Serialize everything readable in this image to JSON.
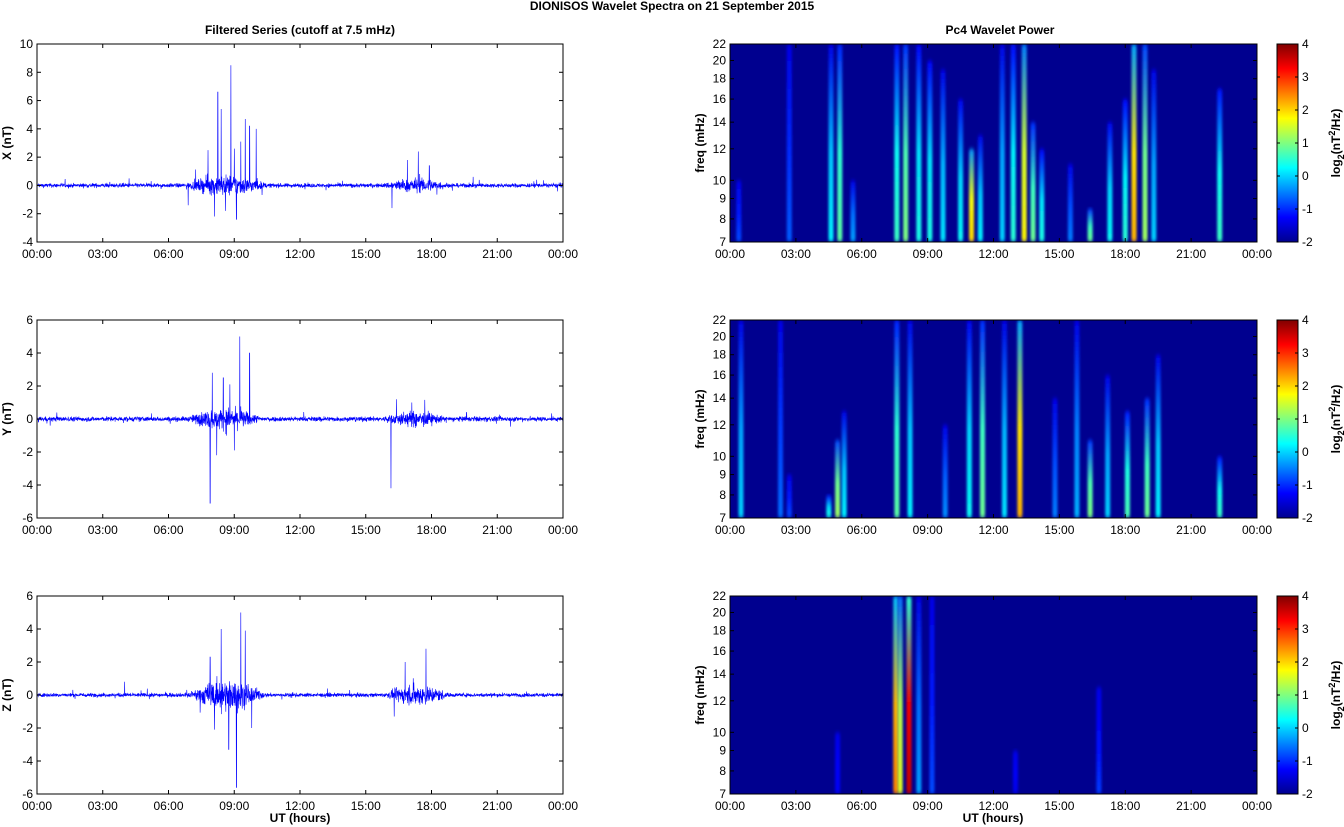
{
  "figure": {
    "title": "DIONISOS Wavelet Spectra on 21 September 2015",
    "left_title": "Filtered Series (cutoff at 7.5 mHz)",
    "right_title": "Pc4 Wavelet Power",
    "x_label": "UT (hours)",
    "time_ticks": [
      "00:00",
      "03:00",
      "06:00",
      "09:00",
      "12:00",
      "15:00",
      "18:00",
      "21:00",
      "00:00"
    ],
    "freq_label": "freq (mHz)",
    "freq_ticks": [
      7,
      8,
      9,
      10,
      12,
      14,
      16,
      18,
      20,
      22
    ],
    "colorbar_ticks": [
      -2,
      -1,
      0,
      1,
      2,
      3,
      4
    ],
    "colorbar_label": "log2(nT^2/Hz)",
    "colormap": "jet",
    "trace_color": "#0000ff",
    "spectrum_background": "#00008f"
  },
  "chart_data": [
    {
      "type": "line",
      "panel": "filtered-x",
      "series_name": "X",
      "ylabel": "X (nT)",
      "ylim": [
        -4,
        10
      ],
      "yticks": [
        -4,
        -2,
        0,
        2,
        4,
        6,
        8,
        10
      ],
      "xlim_hours": [
        0,
        24
      ],
      "baseline_noise_nT": 0.1,
      "bursts": [
        {
          "start_h": 6.8,
          "end_h": 10.5,
          "noise_nT": 0.4
        },
        {
          "start_h": 15.8,
          "end_h": 18.8,
          "noise_nT": 0.25
        }
      ],
      "spikes": [
        {
          "t_h": 8.25,
          "y": 6.6
        },
        {
          "t_h": 8.4,
          "y": 5.4
        },
        {
          "t_h": 8.85,
          "y": 8.5
        },
        {
          "t_h": 9.5,
          "y": 4.7
        },
        {
          "t_h": 9.7,
          "y": 4.2
        },
        {
          "t_h": 10.0,
          "y": 4.0
        },
        {
          "t_h": 7.8,
          "y": 2.5
        },
        {
          "t_h": 9.0,
          "y": 2.6
        },
        {
          "t_h": 9.3,
          "y": 3.1
        },
        {
          "t_h": 8.1,
          "y": -2.2
        },
        {
          "t_h": 8.6,
          "y": -1.8
        },
        {
          "t_h": 9.1,
          "y": -2.4
        },
        {
          "t_h": 6.9,
          "y": -1.4
        },
        {
          "t_h": 17.4,
          "y": 2.4
        },
        {
          "t_h": 17.9,
          "y": 1.4
        },
        {
          "t_h": 16.2,
          "y": -1.6
        },
        {
          "t_h": 16.9,
          "y": 1.8
        },
        {
          "t_h": 4.2,
          "y": 0.5
        },
        {
          "t_h": 22.8,
          "y": 0.4
        }
      ]
    },
    {
      "type": "line",
      "panel": "filtered-y",
      "series_name": "Y",
      "ylabel": "Y (nT)",
      "ylim": [
        -6,
        6
      ],
      "yticks": [
        -6,
        -4,
        -2,
        0,
        2,
        4,
        6
      ],
      "xlim_hours": [
        0,
        24
      ],
      "baseline_noise_nT": 0.1,
      "bursts": [
        {
          "start_h": 6.9,
          "end_h": 10.2,
          "noise_nT": 0.35
        },
        {
          "start_h": 15.8,
          "end_h": 18.6,
          "noise_nT": 0.22
        }
      ],
      "spikes": [
        {
          "t_h": 9.25,
          "y": 5.0
        },
        {
          "t_h": 9.7,
          "y": 4.0
        },
        {
          "t_h": 7.9,
          "y": -5.1
        },
        {
          "t_h": 8.0,
          "y": 2.8
        },
        {
          "t_h": 8.5,
          "y": 2.5
        },
        {
          "t_h": 8.8,
          "y": 2.1
        },
        {
          "t_h": 8.2,
          "y": -2.2
        },
        {
          "t_h": 9.0,
          "y": -1.9
        },
        {
          "t_h": 16.15,
          "y": -4.2
        },
        {
          "t_h": 16.4,
          "y": 1.2
        },
        {
          "t_h": 17.1,
          "y": 1.0
        },
        {
          "t_h": 0.6,
          "y": -0.4
        },
        {
          "t_h": 19.6,
          "y": 0.4
        }
      ]
    },
    {
      "type": "line",
      "panel": "filtered-z",
      "series_name": "Z",
      "ylabel": "Z (nT)",
      "ylim": [
        -6,
        6
      ],
      "yticks": [
        -6,
        -4,
        -2,
        0,
        2,
        4,
        6
      ],
      "xlim_hours": [
        0,
        24
      ],
      "baseline_noise_nT": 0.08,
      "bursts": [
        {
          "start_h": 6.9,
          "end_h": 10.4,
          "noise_nT": 0.55
        },
        {
          "start_h": 15.9,
          "end_h": 18.8,
          "noise_nT": 0.35
        }
      ],
      "spikes": [
        {
          "t_h": 8.4,
          "y": 4.0
        },
        {
          "t_h": 9.3,
          "y": 5.0
        },
        {
          "t_h": 9.1,
          "y": -5.6
        },
        {
          "t_h": 8.75,
          "y": -3.3
        },
        {
          "t_h": 9.5,
          "y": 3.9
        },
        {
          "t_h": 7.9,
          "y": 2.3
        },
        {
          "t_h": 8.1,
          "y": -2.1
        },
        {
          "t_h": 17.75,
          "y": 2.8
        },
        {
          "t_h": 16.8,
          "y": 2.0
        },
        {
          "t_h": 16.3,
          "y": -1.3
        },
        {
          "t_h": 4.0,
          "y": 0.8
        },
        {
          "t_h": 9.8,
          "y": -2.0
        }
      ]
    },
    {
      "type": "heatmap",
      "panel": "wavelet-x",
      "colorbar_range": [
        -2,
        4
      ],
      "ylim_mHz": [
        7,
        22
      ],
      "xlim_hours": [
        0,
        24
      ],
      "streaks": [
        {
          "t_h": 2.7,
          "f_top": 22,
          "peak": -0.7
        },
        {
          "t_h": 4.6,
          "f_top": 22,
          "peak": 0.2
        },
        {
          "t_h": 5.0,
          "f_top": 22,
          "peak": 0.8
        },
        {
          "t_h": 5.6,
          "f_top": 10,
          "peak": -0.3
        },
        {
          "t_h": 7.6,
          "f_top": 22,
          "peak": 0.6
        },
        {
          "t_h": 8.0,
          "f_top": 22,
          "peak": 1.0
        },
        {
          "t_h": 8.6,
          "f_top": 22,
          "peak": 0.4
        },
        {
          "t_h": 9.1,
          "f_top": 20,
          "peak": 0.4
        },
        {
          "t_h": 9.7,
          "f_top": 19,
          "peak": 0.1
        },
        {
          "t_h": 10.5,
          "f_top": 16,
          "peak": 0.3
        },
        {
          "t_h": 11.0,
          "f_top": 12,
          "peak": 2.0
        },
        {
          "t_h": 11.4,
          "f_top": 13,
          "peak": 0.2
        },
        {
          "t_h": 12.4,
          "f_top": 22,
          "peak": 0.0
        },
        {
          "t_h": 12.9,
          "f_top": 22,
          "peak": 0.5
        },
        {
          "t_h": 13.4,
          "f_top": 22,
          "peak": 1.8
        },
        {
          "t_h": 13.8,
          "f_top": 14,
          "peak": 0.9
        },
        {
          "t_h": 14.2,
          "f_top": 12,
          "peak": 0.4
        },
        {
          "t_h": 15.5,
          "f_top": 11,
          "peak": -0.5
        },
        {
          "t_h": 16.4,
          "f_top": 8.5,
          "peak": 0.9
        },
        {
          "t_h": 17.3,
          "f_top": 14,
          "peak": 0.3
        },
        {
          "t_h": 18.0,
          "f_top": 16,
          "peak": 0.5
        },
        {
          "t_h": 18.4,
          "f_top": 22,
          "peak": 2.2
        },
        {
          "t_h": 18.9,
          "f_top": 22,
          "peak": 1.2
        },
        {
          "t_h": 19.3,
          "f_top": 19,
          "peak": 0.0
        },
        {
          "t_h": 22.3,
          "f_top": 17,
          "peak": 0.6
        },
        {
          "t_h": 0.4,
          "f_top": 10,
          "peak": -0.8
        }
      ]
    },
    {
      "type": "heatmap",
      "panel": "wavelet-y",
      "colorbar_range": [
        -2,
        4
      ],
      "ylim_mHz": [
        7,
        22
      ],
      "xlim_hours": [
        0,
        24
      ],
      "streaks": [
        {
          "t_h": 0.5,
          "f_top": 22,
          "peak": 0.0
        },
        {
          "t_h": 2.3,
          "f_top": 22,
          "peak": -0.6
        },
        {
          "t_h": 2.7,
          "f_top": 9,
          "peak": -0.8
        },
        {
          "t_h": 4.5,
          "f_top": 8,
          "peak": 0.4
        },
        {
          "t_h": 4.9,
          "f_top": 11,
          "peak": 1.2
        },
        {
          "t_h": 5.2,
          "f_top": 13,
          "peak": 0.2
        },
        {
          "t_h": 7.6,
          "f_top": 22,
          "peak": 0.8
        },
        {
          "t_h": 8.2,
          "f_top": 22,
          "peak": 0.2
        },
        {
          "t_h": 9.8,
          "f_top": 12,
          "peak": -0.4
        },
        {
          "t_h": 10.9,
          "f_top": 22,
          "peak": 0.3
        },
        {
          "t_h": 11.5,
          "f_top": 22,
          "peak": 0.9
        },
        {
          "t_h": 12.5,
          "f_top": 22,
          "peak": 0.1
        },
        {
          "t_h": 13.2,
          "f_top": 22,
          "peak": 2.2
        },
        {
          "t_h": 14.8,
          "f_top": 14,
          "peak": -0.5
        },
        {
          "t_h": 15.8,
          "f_top": 22,
          "peak": -0.2
        },
        {
          "t_h": 16.4,
          "f_top": 11,
          "peak": 1.0
        },
        {
          "t_h": 17.2,
          "f_top": 16,
          "peak": 0.0
        },
        {
          "t_h": 18.1,
          "f_top": 13,
          "peak": 0.7
        },
        {
          "t_h": 19.0,
          "f_top": 14,
          "peak": 0.9
        },
        {
          "t_h": 19.5,
          "f_top": 18,
          "peak": 0.2
        },
        {
          "t_h": 22.3,
          "f_top": 10,
          "peak": 0.6
        }
      ]
    },
    {
      "type": "heatmap",
      "panel": "wavelet-z",
      "colorbar_range": [
        -2,
        4
      ],
      "ylim_mHz": [
        7,
        22
      ],
      "xlim_hours": [
        0,
        24
      ],
      "streaks": [
        {
          "t_h": 7.55,
          "f_top": 22,
          "peak": 2.5
        },
        {
          "t_h": 7.75,
          "f_top": 22,
          "peak": 1.6
        },
        {
          "t_h": 8.15,
          "f_top": 22,
          "peak": 3.6
        },
        {
          "t_h": 8.6,
          "f_top": 22,
          "peak": -0.3
        },
        {
          "t_h": 9.2,
          "f_top": 22,
          "peak": -0.8
        },
        {
          "t_h": 16.8,
          "f_top": 13,
          "peak": -0.9
        },
        {
          "t_h": 4.9,
          "f_top": 10,
          "peak": -1.3
        },
        {
          "t_h": 13.0,
          "f_top": 9,
          "peak": -1.4
        }
      ]
    }
  ]
}
